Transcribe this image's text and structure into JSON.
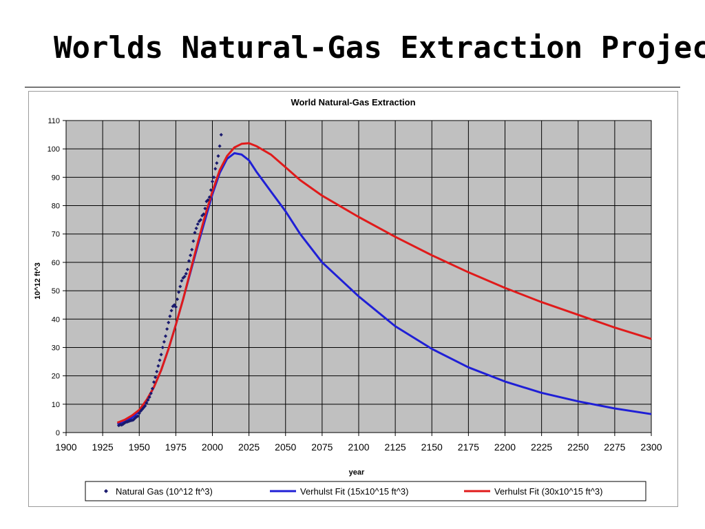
{
  "slide": {
    "title": "Worlds Natural-Gas Extraction Projec"
  },
  "colors": {
    "plot_background": "#c0c0c0",
    "grid": "#000000",
    "natural_gas": "#1a1a6e",
    "verhulst_15": "#1f1fd6",
    "verhulst_30": "#e01a1a"
  },
  "chart_data": {
    "type": "line",
    "title": "World Natural-Gas Extraction",
    "xlabel": "year",
    "ylabel": "10^12 ft^3",
    "xlim": [
      1900,
      2300
    ],
    "ylim": [
      0,
      110
    ],
    "x_ticks": [
      1900,
      1925,
      1950,
      1975,
      2000,
      2025,
      2050,
      2075,
      2100,
      2125,
      2150,
      2175,
      2200,
      2225,
      2250,
      2275,
      2300
    ],
    "y_ticks": [
      0,
      10,
      20,
      30,
      40,
      50,
      60,
      70,
      80,
      90,
      100,
      110
    ],
    "grid": true,
    "legend_position": "bottom",
    "series": [
      {
        "name": "Natural Gas (10^12 ft^3)",
        "style": "scatter",
        "color": "#1a1a6e",
        "x": [
          1936,
          1937,
          1938,
          1939,
          1940,
          1941,
          1942,
          1943,
          1944,
          1945,
          1946,
          1947,
          1948,
          1949,
          1950,
          1951,
          1952,
          1953,
          1954,
          1955,
          1956,
          1957,
          1958,
          1959,
          1960,
          1961,
          1962,
          1963,
          1964,
          1965,
          1966,
          1967,
          1968,
          1969,
          1970,
          1971,
          1972,
          1973,
          1974,
          1975,
          1976,
          1977,
          1978,
          1979,
          1980,
          1981,
          1982,
          1983,
          1984,
          1985,
          1986,
          1987,
          1988,
          1989,
          1990,
          1991,
          1992,
          1993,
          1994,
          1995,
          1996,
          1997,
          1998,
          1999,
          2000,
          2001,
          2002,
          2003,
          2004,
          2005,
          2006
        ],
        "y": [
          2.5,
          2.8,
          2.7,
          3.0,
          3.4,
          3.7,
          3.8,
          4.0,
          4.2,
          4.3,
          4.5,
          5.0,
          5.5,
          5.8,
          6.8,
          7.6,
          8.2,
          8.8,
          9.4,
          10.5,
          11.5,
          12.5,
          13.8,
          15.5,
          17.8,
          19.5,
          21.5,
          23.5,
          25.5,
          27.5,
          30.0,
          32.0,
          34.0,
          36.5,
          38.8,
          41.0,
          43.0,
          44.5,
          45.0,
          44.3,
          47.0,
          49.5,
          51.5,
          53.5,
          54.5,
          55.0,
          56.0,
          57.5,
          60.5,
          62.5,
          64.5,
          67.5,
          70.5,
          72.0,
          73.5,
          74.5,
          75.0,
          76.5,
          77.0,
          79.0,
          81.5,
          82.0,
          83.0,
          85.5,
          88.5,
          90.0,
          93.0,
          95.0,
          97.5,
          101.0,
          105.0
        ]
      },
      {
        "name": "Verhulst Fit (15x10^15 ft^3)",
        "style": "line",
        "color": "#1f1fd6",
        "x": [
          1935,
          1940,
          1945,
          1950,
          1955,
          1960,
          1965,
          1970,
          1975,
          1980,
          1985,
          1990,
          1995,
          2000,
          2005,
          2010,
          2015,
          2020,
          2025,
          2030,
          2040,
          2050,
          2060,
          2075,
          2100,
          2125,
          2150,
          2175,
          2200,
          2225,
          2250,
          2275,
          2300
        ],
        "y": [
          3.0,
          3.8,
          5.2,
          7.5,
          11.0,
          16.0,
          22.0,
          29.5,
          38.0,
          47.0,
          56.5,
          66.0,
          75.0,
          84.0,
          91.5,
          96.5,
          98.5,
          98.0,
          96.0,
          92.0,
          85.0,
          78.0,
          70.0,
          60.0,
          48.0,
          37.5,
          29.5,
          23.0,
          18.0,
          14.0,
          11.0,
          8.5,
          6.5
        ]
      },
      {
        "name": "Verhulst Fit (30x10^15 ft^3)",
        "style": "line",
        "color": "#e01a1a",
        "x": [
          1935,
          1940,
          1945,
          1950,
          1955,
          1960,
          1965,
          1970,
          1975,
          1980,
          1985,
          1990,
          1995,
          2000,
          2005,
          2010,
          2015,
          2020,
          2025,
          2030,
          2040,
          2050,
          2060,
          2075,
          2100,
          2125,
          2150,
          2175,
          2200,
          2225,
          2250,
          2275,
          2300
        ],
        "y": [
          3.5,
          4.5,
          6.0,
          8.0,
          11.5,
          16.0,
          22.0,
          29.5,
          38.0,
          47.0,
          57.0,
          67.0,
          76.5,
          85.0,
          92.5,
          97.5,
          100.5,
          101.8,
          102.0,
          101.0,
          98.0,
          93.5,
          89.0,
          83.5,
          76.0,
          69.0,
          62.5,
          56.5,
          51.0,
          46.0,
          41.5,
          37.0,
          33.0
        ]
      }
    ]
  }
}
